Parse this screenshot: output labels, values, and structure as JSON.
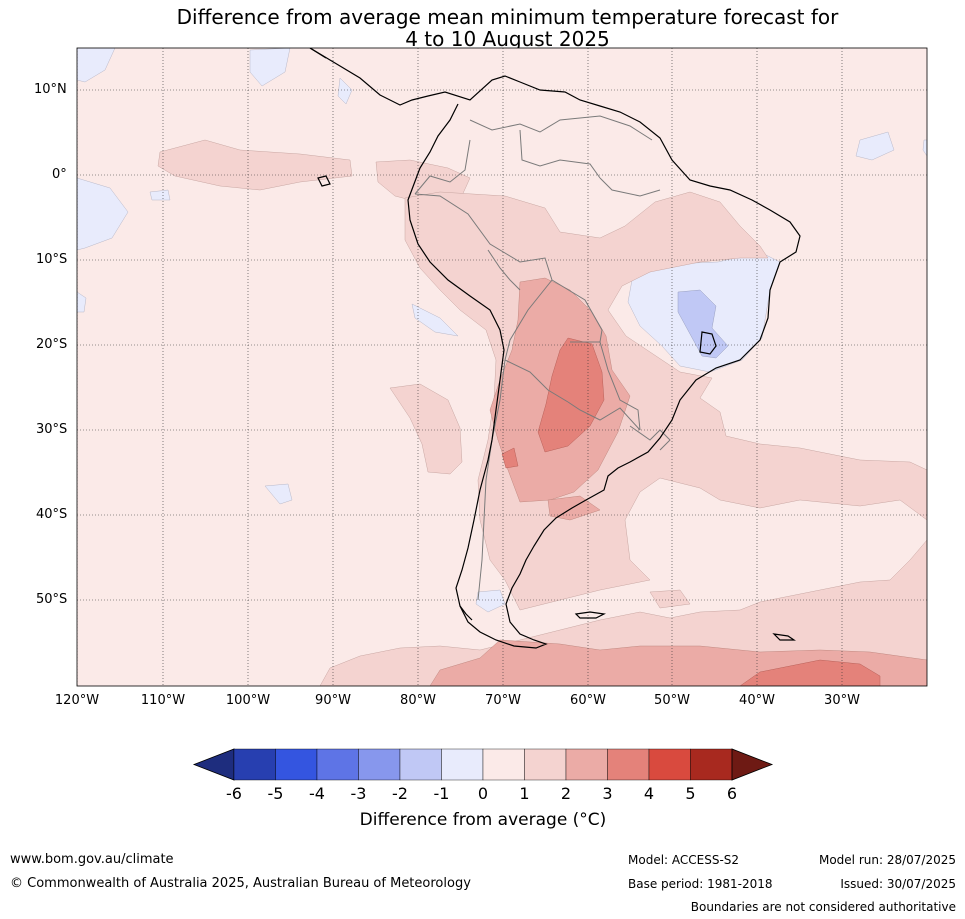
{
  "title": {
    "line1": "Difference from average mean minimum temperature forecast for",
    "line2": "4 to 10 August 2025"
  },
  "map": {
    "lat_labels": [
      "10°N",
      "0°",
      "10°S",
      "20°S",
      "30°S",
      "40°S",
      "50°S"
    ],
    "lon_labels": [
      "120°W",
      "110°W",
      "100°W",
      "90°W",
      "80°W",
      "70°W",
      "60°W",
      "50°W",
      "40°W",
      "30°W"
    ],
    "background_anomaly_color": "#fbeae8"
  },
  "colorbar": {
    "label": "Difference from average (°C)",
    "ticks": [
      "-6",
      "-5",
      "-4",
      "-3",
      "-2",
      "-1",
      "0",
      "1",
      "2",
      "3",
      "4",
      "5",
      "6"
    ],
    "colors": [
      "#1e2d7e",
      "#273fb0",
      "#3455e0",
      "#5e74e6",
      "#8797ed",
      "#c0c8f5",
      "#e8ebfc",
      "#fbeae8",
      "#f4d3d0",
      "#ebaba6",
      "#e4827a",
      "#d94a3e",
      "#a8291f",
      "#6e1a14"
    ]
  },
  "footer": {
    "website": "www.bom.gov.au/climate",
    "copyright": "© Commonwealth of Australia 2025, Australian Bureau of Meteorology",
    "model": "Model: ACCESS-S2",
    "base_period": "Base period: 1981-2018",
    "model_run": "Model run: 28/07/2025",
    "issued": "Issued: 30/07/2025",
    "disclaimer": "Boundaries are not considered authoritative"
  }
}
